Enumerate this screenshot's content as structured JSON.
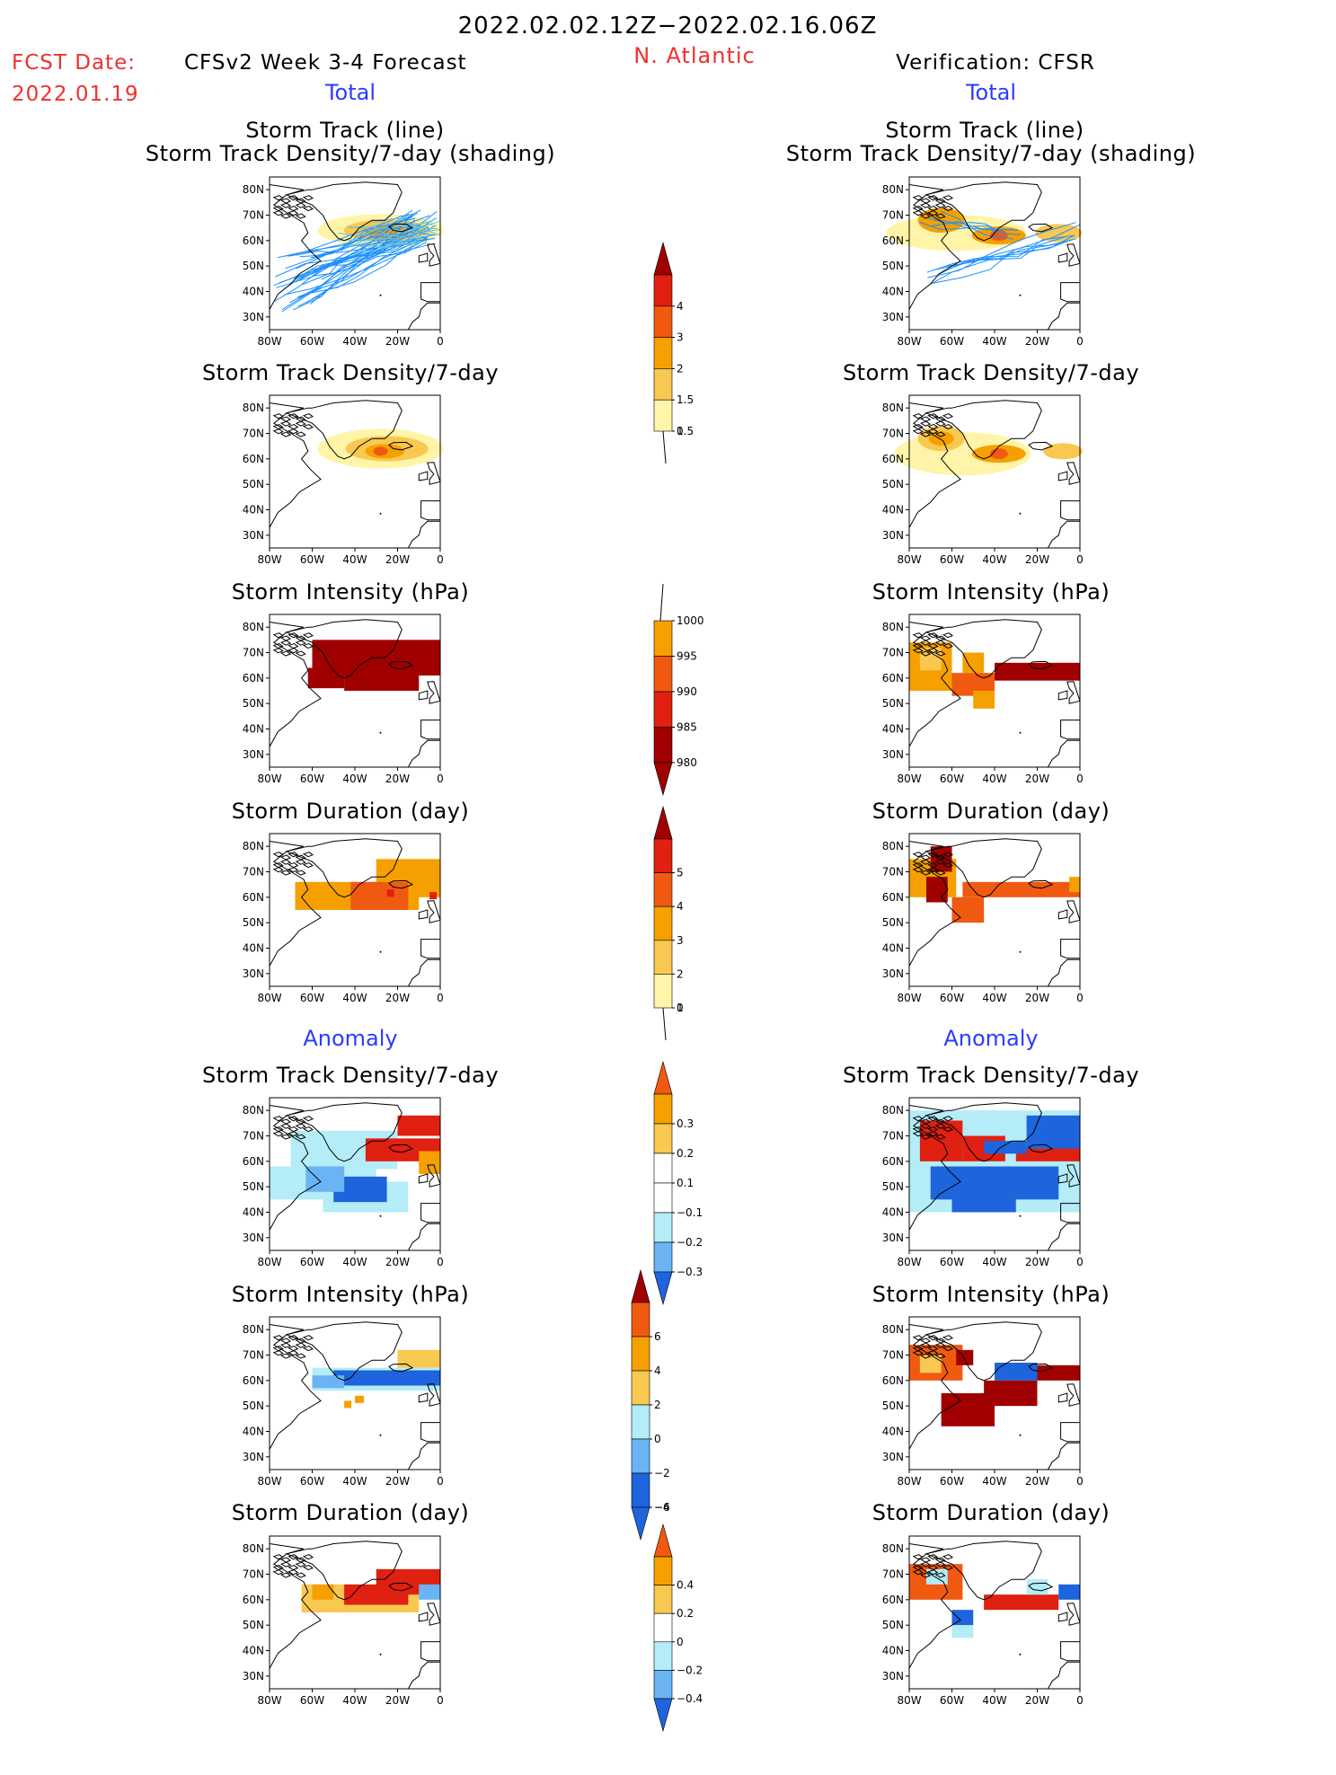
{
  "header": {
    "date_range": "2022.02.02.12Z−2022.02.16.06Z",
    "fcst_label": "FCST Date:",
    "fcst_date": "2022.01.19",
    "model": "CFSv2 Week 3-4 Forecast",
    "region": "N. Atlantic",
    "verification": "Verification: CFSR"
  },
  "sections": {
    "total_left": "Total",
    "total_right": "Total",
    "anomaly_left": "Anomaly",
    "anomaly_right": "Anomaly"
  },
  "panel_titles": {
    "track_1": "Storm Track (line)",
    "track_2": "Storm Track Density/7-day (shading)",
    "density": "Storm Track Density/7-day",
    "intensity": "Storm Intensity (hPa)",
    "duration": "Storm Duration (day)"
  },
  "axes": {
    "lat_ticks": [
      "80N",
      "70N",
      "60N",
      "50N",
      "40N",
      "30N"
    ],
    "lon_ticks": [
      "80W",
      "60W",
      "40W",
      "20W",
      "0"
    ]
  },
  "colorbars": {
    "density_total": [
      "4",
      "3",
      "2",
      "1.5",
      "1",
      "0.5"
    ],
    "intensity_total": [
      "1000",
      "995",
      "990",
      "985",
      "980"
    ],
    "duration_total": [
      "5",
      "4",
      "3",
      "2",
      "1",
      "0"
    ],
    "density_anom": [
      "0.3",
      "0.2",
      "0.1",
      "−0.1",
      "−0.2",
      "−0.3"
    ],
    "intensity_anom": [
      "6",
      "4",
      "2",
      "0",
      "−2",
      "−4",
      "−6"
    ],
    "duration_anom": [
      "0.4",
      "0.2",
      "0",
      "−0.2",
      "−0.4"
    ]
  },
  "colors": {
    "title_red": "#f03030",
    "section_blue": "#2a3cff",
    "dark_red": "#a00000",
    "red": "#e02010",
    "orange_red": "#f05a10",
    "orange": "#f5a000",
    "light_orange": "#f8c850",
    "pale_yellow": "#fff4a8",
    "light_blue": "#b4ecf8",
    "mid_blue": "#6ab4f4",
    "blue": "#1e64dc",
    "track_blue": "#1e90ff"
  }
}
